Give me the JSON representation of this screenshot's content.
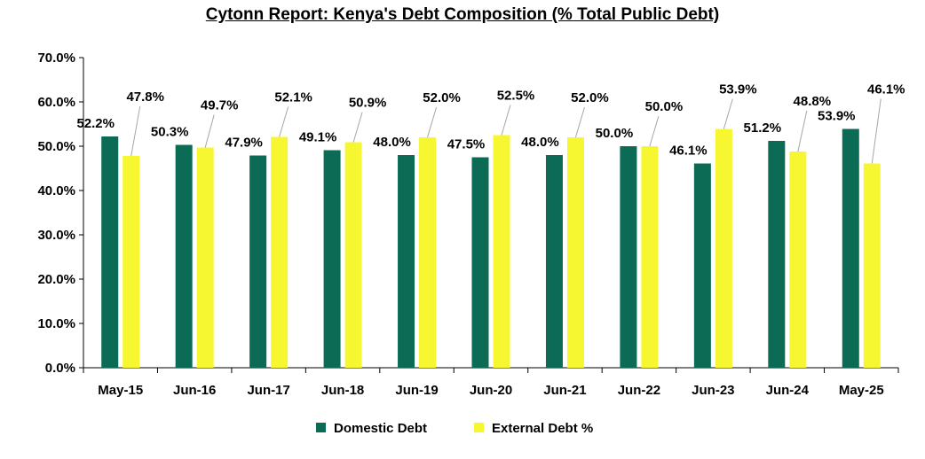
{
  "chart_data": {
    "type": "bar",
    "title": "Cytonn Report: Kenya's Debt  Composition (% Total Public Debt)",
    "categories": [
      "May-15",
      "Jun-16",
      "Jun-17",
      "Jun-18",
      "Jun-19",
      "Jun-20",
      "Jun-21",
      "Jun-22",
      "Jun-23",
      "Jun-24",
      "May-25"
    ],
    "series": [
      {
        "name": "Domestic Debt",
        "color": "#0b6b55",
        "values": [
          52.2,
          50.3,
          47.9,
          49.1,
          48.0,
          47.5,
          48.0,
          50.0,
          46.1,
          51.2,
          53.9
        ],
        "labels": [
          "52.2%",
          "50.3%",
          "47.9%",
          "49.1%",
          "48.0%",
          "47.5%",
          "48.0%",
          "50.0%",
          "46.1%",
          "51.2%",
          "53.9%"
        ]
      },
      {
        "name": "External Debt %",
        "color": "#f7f731",
        "values": [
          47.8,
          49.7,
          52.1,
          50.9,
          52.0,
          52.5,
          52.0,
          50.0,
          53.9,
          48.8,
          46.1
        ],
        "labels": [
          "47.8%",
          "49.7%",
          "52.1%",
          "50.9%",
          "52.0%",
          "52.5%",
          "52.0%",
          "50.0%",
          "53.9%",
          "48.8%",
          "46.1%"
        ]
      }
    ],
    "yticks": [
      "0.0%",
      "10.0%",
      "20.0%",
      "30.0%",
      "40.0%",
      "50.0%",
      "60.0%",
      "70.0%"
    ],
    "ylim": [
      0,
      70
    ],
    "grid": false,
    "legend_position": "bottom"
  }
}
